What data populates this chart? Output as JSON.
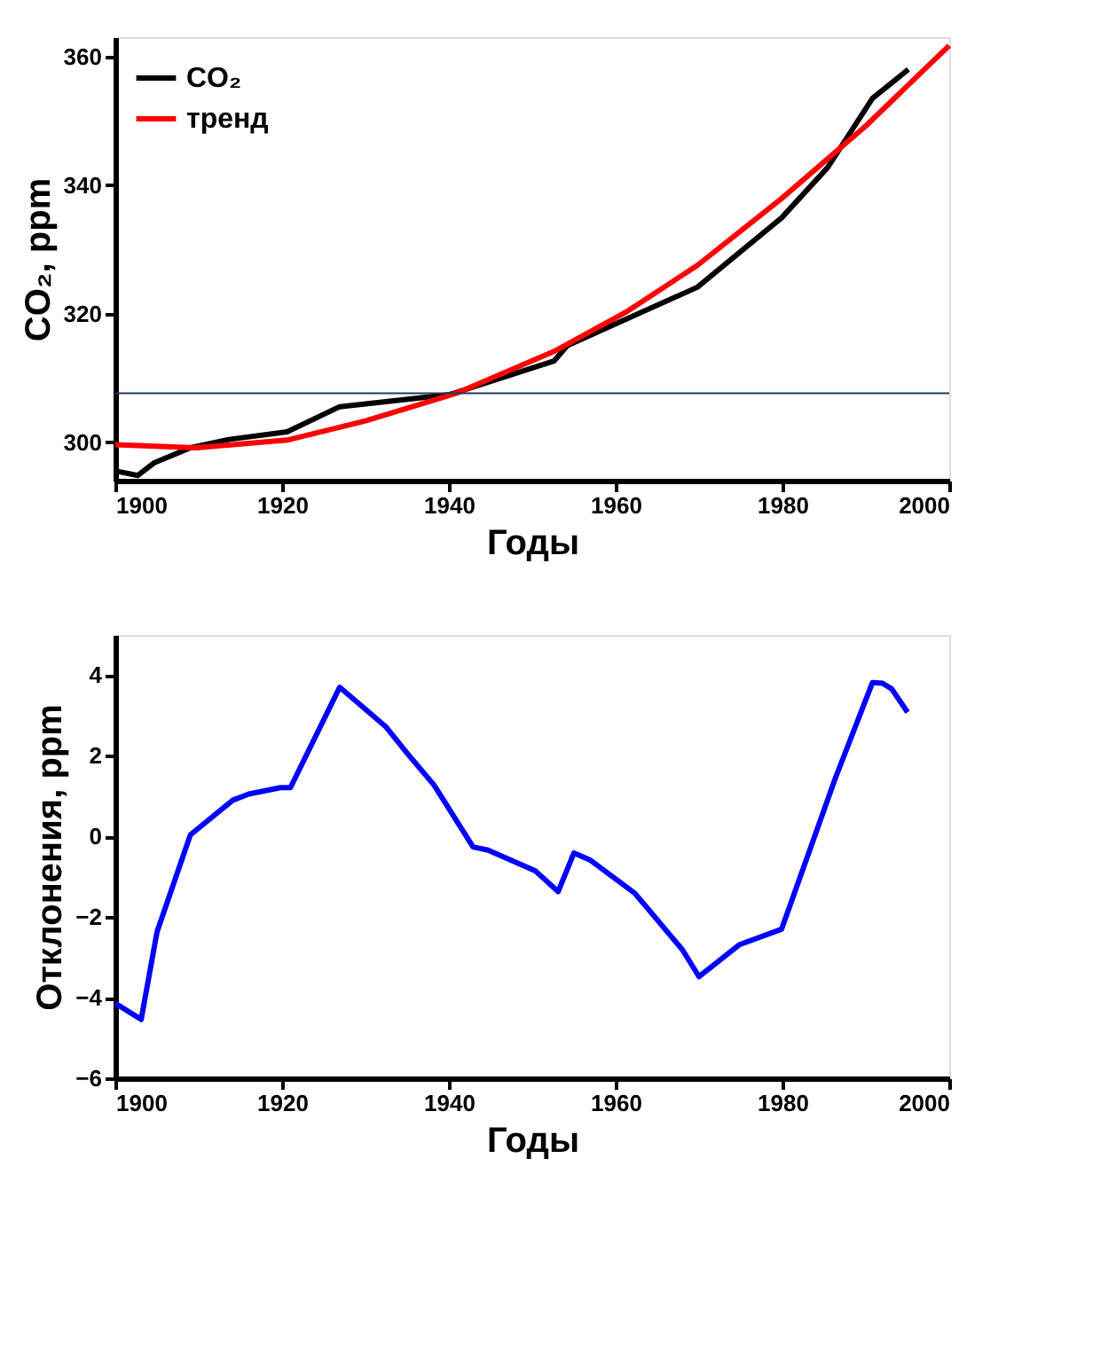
{
  "chart_data": [
    {
      "type": "line",
      "xlabel": "Годы",
      "ylabel": "CO₂, ppm",
      "xlim": [
        1900,
        2000
      ],
      "ylim": [
        294,
        363
      ],
      "xticks": [
        1900,
        1920,
        1940,
        1960,
        1980,
        2000
      ],
      "yticks": [
        300,
        320,
        340,
        360
      ],
      "legend": "top left",
      "grid": false,
      "series": [
        {
          "name": "CO₂",
          "color": "#000000",
          "x": [
            1900,
            1902.7,
            1904.7,
            1909,
            1913.6,
            1920.6,
            1926.9,
            1940.1,
            1952.6,
            1954.2,
            1969.8,
            1979.9,
            1985.4,
            1990.8,
            1995.1
          ],
          "values": [
            295.5,
            294.8,
            296.8,
            299.1,
            300.4,
            301.6,
            305.5,
            307.4,
            312.6,
            315,
            324.1,
            334.9,
            342.7,
            353.5,
            358
          ]
        },
        {
          "name": "тренд",
          "color": "#ff0000",
          "x": [
            1900,
            1909.7,
            1920.6,
            1930,
            1940.9,
            1952.6,
            1961.2,
            1969.8,
            1979.9,
            1990,
            2000
          ],
          "values": [
            299.6,
            299.1,
            300.3,
            303.3,
            307.6,
            314.1,
            320.2,
            327.5,
            337.9,
            349.2,
            361.7
          ]
        }
      ],
      "ref_lines": [
        {
          "axis": "y",
          "value": 307.6,
          "color": "#203a5a"
        }
      ]
    },
    {
      "type": "line",
      "xlabel": "Годы",
      "ylabel": "Отклонения, ppm",
      "xlim": [
        1900,
        2000
      ],
      "ylim": [
        -6,
        5
      ],
      "xticks": [
        1900,
        1920,
        1940,
        1960,
        1980,
        2000
      ],
      "yticks": [
        -6,
        -4,
        -2,
        0,
        2,
        4
      ],
      "grid": false,
      "series": [
        {
          "color": "#0000ff",
          "x": [
            1900,
            1903.1,
            1905,
            1909,
            1914.1,
            1916,
            1919.8,
            1921,
            1926.9,
            1932.4,
            1935.1,
            1938.2,
            1942.9,
            1944.7,
            1950.4,
            1953.1,
            1955,
            1956.9,
            1962.3,
            1968,
            1970,
            1974.8,
            1979.9,
            1986.3,
            1990.8,
            1992,
            1993.1,
            1995
          ],
          "values": [
            -4.14,
            -4.54,
            -2.37,
            0.04,
            0.9,
            1.05,
            1.21,
            1.21,
            3.7,
            2.73,
            2.04,
            1.28,
            -0.26,
            -0.34,
            -0.86,
            -1.37,
            -0.41,
            -0.58,
            -1.41,
            -2.81,
            -3.48,
            -2.69,
            -2.3,
            1.42,
            3.82,
            3.8,
            3.66,
            3.08
          ]
        }
      ]
    }
  ]
}
